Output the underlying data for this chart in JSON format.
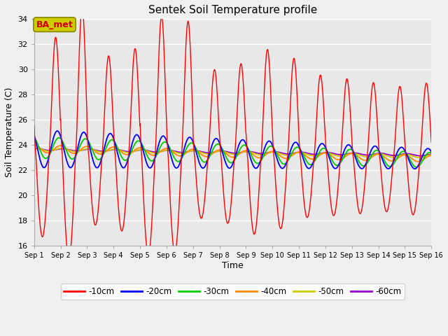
{
  "title": "Sentek Soil Temperature profile",
  "xlabel": "Time",
  "ylabel": "Soil Temperature (C)",
  "annotation": "BA_met",
  "ylim": [
    16,
    34
  ],
  "yticks": [
    16,
    18,
    20,
    22,
    24,
    26,
    28,
    30,
    32,
    34
  ],
  "n_days": 15,
  "xtick_labels": [
    "Sep 1",
    "Sep 2",
    "Sep 3",
    "Sep 4",
    "Sep 5",
    "Sep 6",
    "Sep 7",
    "Sep 8",
    "Sep 9",
    "Sep 10",
    "Sep 11",
    "Sep 12",
    "Sep 13",
    "Sep 14",
    "Sep 15",
    "Sep 16"
  ],
  "colors": {
    "-10cm": "#ff0000",
    "-20cm": "#0000ff",
    "-30cm": "#00cc00",
    "-40cm": "#ff8800",
    "-50cm": "#cccc00",
    "-60cm": "#9900cc"
  },
  "fig_bg": "#f0f0f0",
  "ax_bg": "#e8e8e8",
  "grid_color": "#ffffff",
  "annotation_box_color": "#cccc00",
  "annotation_text_color": "#cc0000",
  "annotation_box_edge": "#888800"
}
